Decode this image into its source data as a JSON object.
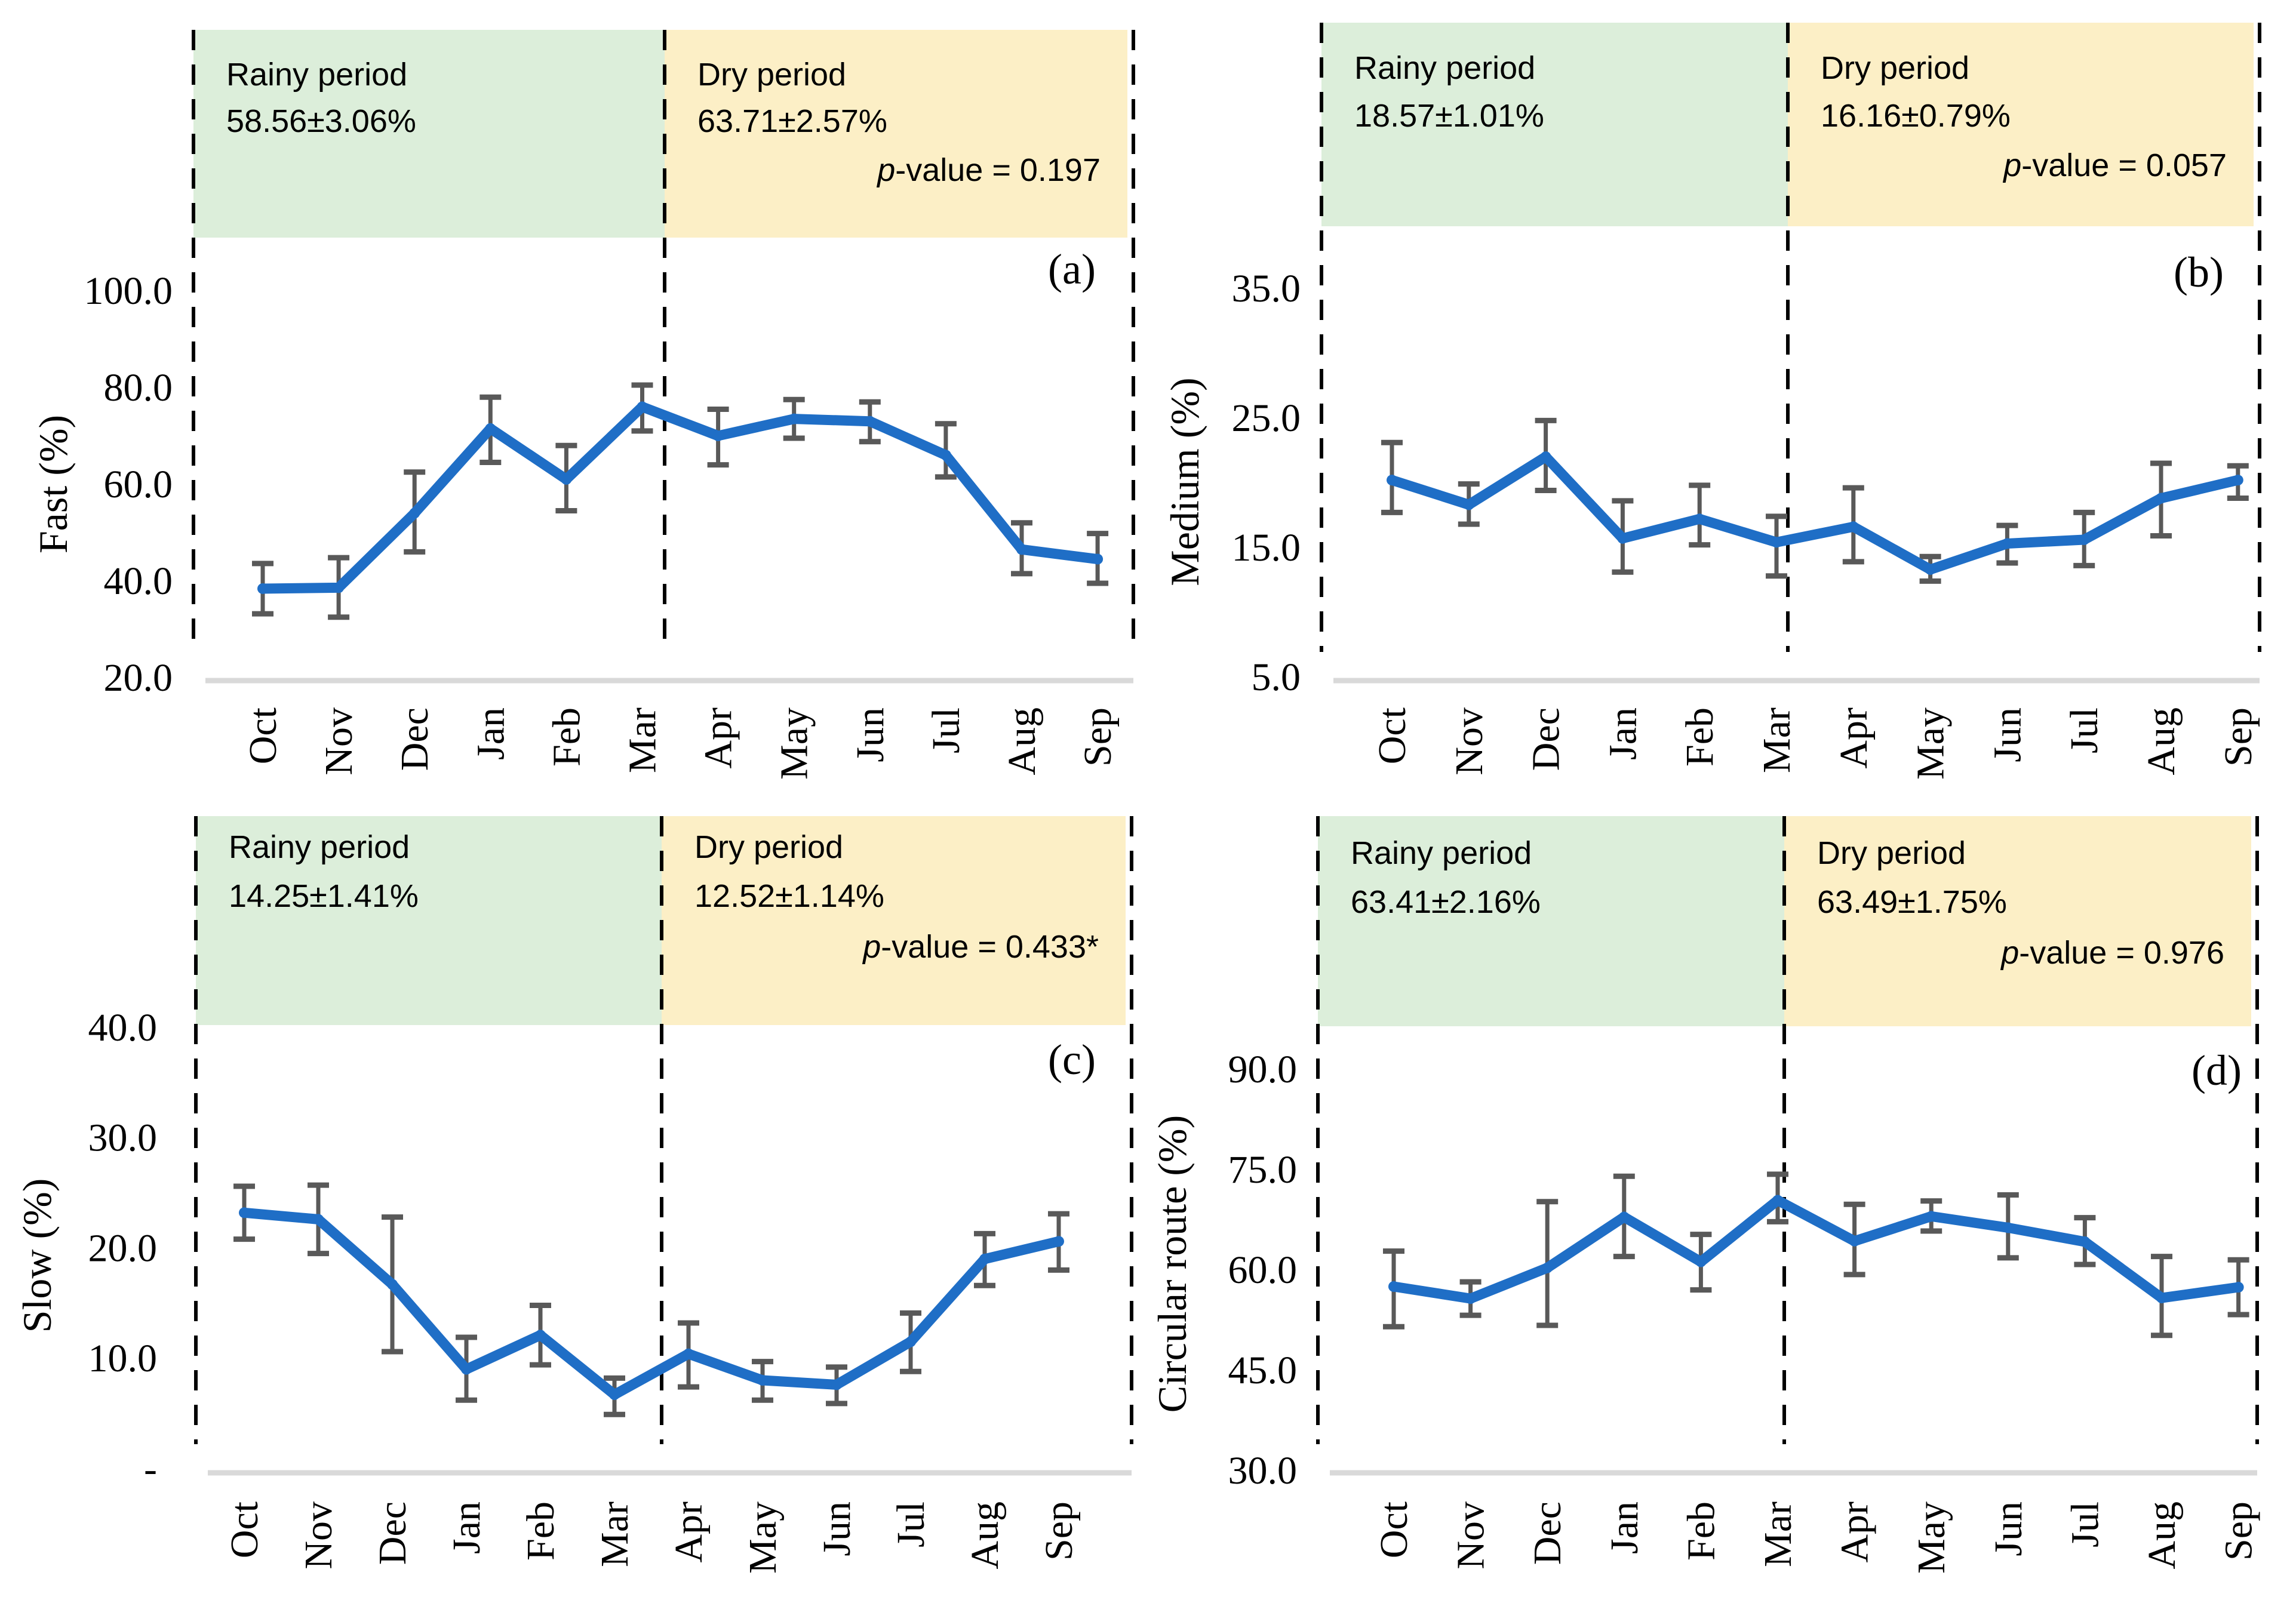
{
  "figure": {
    "colors": {
      "line": "#1F6EC6",
      "error_bar": "#595959",
      "rainy_box": "#DCEEDA",
      "dry_box": "#FCEFC6",
      "axis_line": "#D9D9D9",
      "dashed_line": "#000000",
      "text": "#000000"
    }
  },
  "chart_data": [
    {
      "type": "line",
      "panel_label": "(a)",
      "ylabel": "Fast (%)",
      "xlabel": "",
      "grid": false,
      "error_bars": true,
      "ylim": [
        20,
        100
      ],
      "categories": [
        "Oct",
        "Nov",
        "Dec",
        "Jan",
        "Feb",
        "Mar",
        "Apr",
        "May",
        "Jun",
        "Jul",
        "Aug",
        "Sep"
      ],
      "values": [
        38.4,
        38.6,
        54.0,
        71.5,
        61.0,
        76.0,
        70.0,
        73.5,
        73.0,
        66.0,
        46.5,
        44.5
      ],
      "error_low": [
        33.2,
        32.5,
        46.0,
        64.5,
        54.5,
        71.0,
        64.0,
        69.5,
        68.8,
        61.5,
        41.5,
        39.5
      ],
      "error_high": [
        43.6,
        44.8,
        62.5,
        78.0,
        68.0,
        80.5,
        75.5,
        77.5,
        77.0,
        72.5,
        52.0,
        49.8
      ],
      "yticks": [
        {
          "label": "100.0",
          "value": 100
        },
        {
          "label": "80.0",
          "value": 80
        },
        {
          "label": "60.0",
          "value": 60
        },
        {
          "label": "40.0",
          "value": 40
        },
        {
          "label": "20.0",
          "value": 20
        }
      ],
      "annotations": {
        "rainy_label": "Rainy period",
        "rainy_stat": "58.56±3.06%",
        "dry_label": "Dry period",
        "dry_stat": "63.71±2.57%",
        "p_value": "p-value = 0.197"
      }
    },
    {
      "type": "line",
      "panel_label": "(b)",
      "ylabel": "Medium (%)",
      "xlabel": "",
      "grid": false,
      "error_bars": true,
      "ylim": [
        5,
        35
      ],
      "categories": [
        "Oct",
        "Nov",
        "Dec",
        "Jan",
        "Feb",
        "Mar",
        "Apr",
        "May",
        "Jun",
        "Jul",
        "Aug",
        "Sep"
      ],
      "values": [
        20.2,
        18.3,
        22.0,
        15.7,
        17.2,
        15.4,
        16.6,
        13.3,
        15.3,
        15.6,
        18.8,
        20.2
      ],
      "error_low": [
        17.7,
        16.8,
        19.4,
        13.1,
        15.2,
        12.8,
        13.9,
        12.4,
        13.8,
        13.6,
        15.9,
        18.8
      ],
      "error_high": [
        23.1,
        19.9,
        24.8,
        18.6,
        19.8,
        17.4,
        19.6,
        14.3,
        16.7,
        17.7,
        21.5,
        21.3
      ],
      "yticks": [
        {
          "label": "35.0",
          "value": 35
        },
        {
          "label": "25.0",
          "value": 25
        },
        {
          "label": "15.0",
          "value": 15
        },
        {
          "label": "5.0",
          "value": 5
        }
      ],
      "annotations": {
        "rainy_label": "Rainy period",
        "rainy_stat": "18.57±1.01%",
        "dry_label": "Dry period",
        "dry_stat": "16.16±0.79%",
        "p_value": "p-value = 0.057"
      }
    },
    {
      "type": "line",
      "panel_label": "(c)",
      "ylabel": "Slow (%)",
      "xlabel": "",
      "grid": false,
      "error_bars": true,
      "ylim": [
        0,
        40
      ],
      "categories": [
        "Oct",
        "Nov",
        "Dec",
        "Jan",
        "Feb",
        "Mar",
        "Apr",
        "May",
        "Jun",
        "Jul",
        "Aug",
        "Sep"
      ],
      "values": [
        23.2,
        22.6,
        16.7,
        9.0,
        12.1,
        6.7,
        10.4,
        8.0,
        7.6,
        11.5,
        19.0,
        20.6
      ],
      "error_low": [
        20.8,
        19.5,
        10.6,
        6.2,
        9.4,
        4.9,
        7.4,
        6.2,
        5.9,
        8.8,
        16.6,
        18.0
      ],
      "error_high": [
        25.6,
        25.7,
        22.8,
        11.9,
        14.8,
        8.2,
        13.2,
        9.7,
        9.2,
        14.1,
        21.3,
        23.1
      ],
      "yticks": [
        {
          "label": "40.0",
          "value": 40
        },
        {
          "label": "30.0",
          "value": 30
        },
        {
          "label": "20.0",
          "value": 20
        },
        {
          "label": "10.0",
          "value": 10
        },
        {
          "label": "-",
          "value": 0
        }
      ],
      "annotations": {
        "rainy_label": "Rainy period",
        "rainy_stat": "14.25±1.41%",
        "dry_label": "Dry period",
        "dry_stat": "12.52±1.14%",
        "p_value": "p-value = 0.433*"
      }
    },
    {
      "type": "line",
      "panel_label": "(d)",
      "ylabel": "Circular route (%)",
      "xlabel": "",
      "grid": false,
      "error_bars": true,
      "ylim": [
        30,
        90
      ],
      "categories": [
        "Oct",
        "Nov",
        "Dec",
        "Jan",
        "Feb",
        "Mar",
        "Apr",
        "May",
        "Jun",
        "Jul",
        "Aug",
        "Sep"
      ],
      "values": [
        57.5,
        55.7,
        60.3,
        67.9,
        61.2,
        70.4,
        64.3,
        68.0,
        66.3,
        64.2,
        55.8,
        57.4
      ],
      "error_low": [
        51.5,
        53.2,
        51.7,
        62.0,
        57.0,
        67.2,
        59.3,
        65.8,
        61.8,
        60.8,
        50.2,
        53.3
      ],
      "error_high": [
        62.8,
        58.2,
        70.2,
        74.0,
        65.3,
        74.3,
        69.8,
        70.3,
        71.2,
        67.8,
        62.0,
        61.5
      ],
      "yticks": [
        {
          "label": "90.0",
          "value": 90
        },
        {
          "label": "75.0",
          "value": 75
        },
        {
          "label": "60.0",
          "value": 60
        },
        {
          "label": "45.0",
          "value": 45
        },
        {
          "label": "30.0",
          "value": 30
        }
      ],
      "annotations": {
        "rainy_label": "Rainy period",
        "rainy_stat": "63.41±2.16%",
        "dry_label": "Dry period",
        "dry_stat": "63.49±1.75%",
        "p_value": "p-value = 0.976"
      }
    }
  ]
}
